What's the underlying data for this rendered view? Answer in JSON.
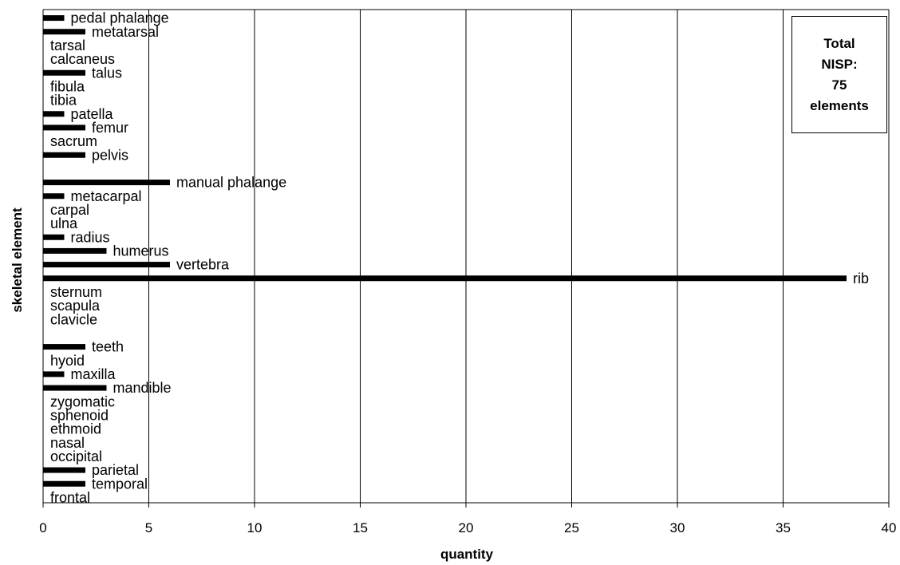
{
  "chart_data": {
    "type": "bar",
    "orientation": "horizontal",
    "xlabel": "quantity",
    "ylabel": "skeletal element",
    "xlim": [
      0,
      40
    ],
    "xticks": [
      0,
      5,
      10,
      15,
      20,
      25,
      30,
      35,
      40
    ],
    "grid": "vertical",
    "bar_color": "#000000",
    "categories": [
      "pedal phalange",
      "metatarsal",
      "tarsal",
      "calcaneus",
      "talus",
      "fibula",
      "tibia",
      "patella",
      "femur",
      "sacrum",
      "pelvis",
      "",
      "manual phalange",
      "metacarpal",
      "carpal",
      "ulna",
      "radius",
      "humerus",
      "vertebra",
      "rib",
      "sternum",
      "scapula",
      "clavicle",
      "",
      "teeth",
      "hyoid",
      "maxilla",
      "mandible",
      "zygomatic",
      "sphenoid",
      "ethmoid",
      "nasal",
      "occipital",
      "parietal",
      "temporal",
      "frontal"
    ],
    "values": [
      1,
      2,
      0,
      0,
      2,
      0,
      0,
      1,
      2,
      0,
      2,
      null,
      6,
      1,
      0,
      0,
      1,
      3,
      6,
      38,
      0,
      0,
      0,
      null,
      2,
      0,
      1,
      3,
      0,
      0,
      0,
      0,
      0,
      2,
      2,
      0
    ],
    "annotation": "Total\nNISP:\n75\nelements",
    "annotation_position": "top-right"
  }
}
